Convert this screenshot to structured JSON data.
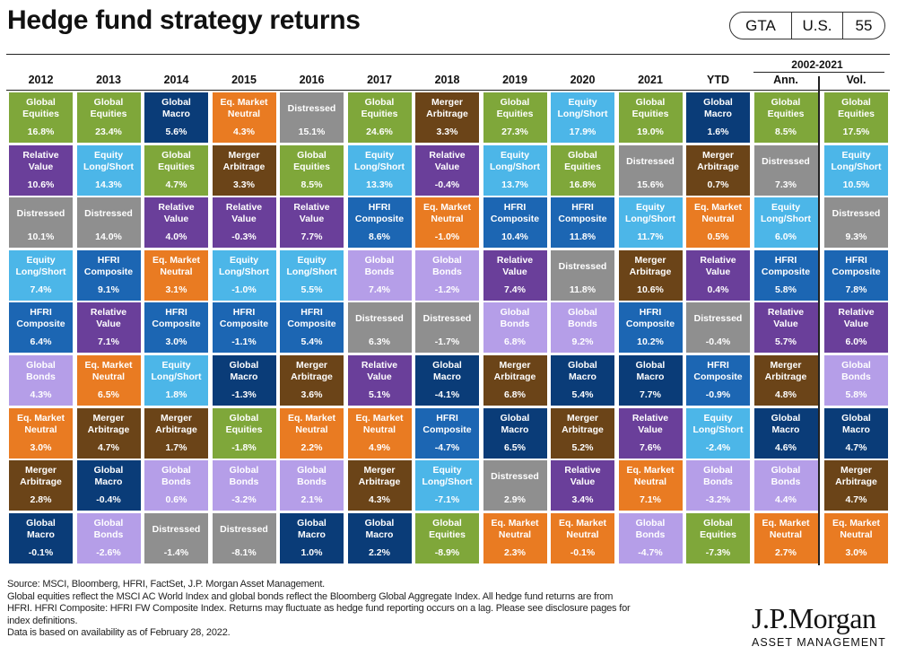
{
  "title": "Hedge fund strategy returns",
  "badge": [
    "GTA",
    "U.S.",
    "55"
  ],
  "chart_data": {
    "type": "table",
    "title": "Hedge fund strategy returns",
    "columns": [
      "2012",
      "2013",
      "2014",
      "2015",
      "2016",
      "2017",
      "2018",
      "2019",
      "2020",
      "2021",
      "YTD",
      "Ann.",
      "Vol."
    ],
    "range_label": "2002-2021",
    "colors": {
      "Global Equities": "#7fa73a",
      "Relative Value": "#6a3f9a",
      "Distressed": "#8f8f8f",
      "Equity Long/Short": "#4cb6e8",
      "HFRI Composite": "#1c66b3",
      "Global Bonds": "#b59ee8",
      "Eq. Market Neutral": "#e97b22",
      "Merger Arbitrage": "#6b4418",
      "Global Macro": "#0a3c78"
    },
    "ranks": [
      [
        {
          "name": "Global Equities",
          "value": "16.8%"
        },
        {
          "name": "Relative Value",
          "value": "10.6%"
        },
        {
          "name": "Distressed",
          "value": "10.1%"
        },
        {
          "name": "Equity Long/Short",
          "value": "7.4%"
        },
        {
          "name": "HFRI Composite",
          "value": "6.4%"
        },
        {
          "name": "Global Bonds",
          "value": "4.3%"
        },
        {
          "name": "Eq. Market Neutral",
          "value": "3.0%"
        },
        {
          "name": "Merger Arbitrage",
          "value": "2.8%"
        },
        {
          "name": "Global Macro",
          "value": "-0.1%"
        }
      ],
      [
        {
          "name": "Global Equities",
          "value": "23.4%"
        },
        {
          "name": "Equity Long/Short",
          "value": "14.3%"
        },
        {
          "name": "Distressed",
          "value": "14.0%"
        },
        {
          "name": "HFRI Composite",
          "value": "9.1%"
        },
        {
          "name": "Relative Value",
          "value": "7.1%"
        },
        {
          "name": "Eq. Market Neutral",
          "value": "6.5%"
        },
        {
          "name": "Merger Arbitrage",
          "value": "4.7%"
        },
        {
          "name": "Global Macro",
          "value": "-0.4%"
        },
        {
          "name": "Global Bonds",
          "value": "-2.6%"
        }
      ],
      [
        {
          "name": "Global Macro",
          "value": "5.6%"
        },
        {
          "name": "Global Equities",
          "value": "4.7%"
        },
        {
          "name": "Relative Value",
          "value": "4.0%"
        },
        {
          "name": "Eq. Market Neutral",
          "value": "3.1%"
        },
        {
          "name": "HFRI Composite",
          "value": "3.0%"
        },
        {
          "name": "Equity Long/Short",
          "value": "1.8%"
        },
        {
          "name": "Merger Arbitrage",
          "value": "1.7%"
        },
        {
          "name": "Global Bonds",
          "value": "0.6%"
        },
        {
          "name": "Distressed",
          "value": "-1.4%"
        }
      ],
      [
        {
          "name": "Eq. Market Neutral",
          "value": "4.3%"
        },
        {
          "name": "Merger Arbitrage",
          "value": "3.3%"
        },
        {
          "name": "Relative Value",
          "value": "-0.3%"
        },
        {
          "name": "Equity Long/Short",
          "value": "-1.0%"
        },
        {
          "name": "HFRI Composite",
          "value": "-1.1%"
        },
        {
          "name": "Global Macro",
          "value": "-1.3%"
        },
        {
          "name": "Global Equities",
          "value": "-1.8%"
        },
        {
          "name": "Global Bonds",
          "value": "-3.2%"
        },
        {
          "name": "Distressed",
          "value": "-8.1%"
        }
      ],
      [
        {
          "name": "Distressed",
          "value": "15.1%"
        },
        {
          "name": "Global Equities",
          "value": "8.5%"
        },
        {
          "name": "Relative Value",
          "value": "7.7%"
        },
        {
          "name": "Equity Long/Short",
          "value": "5.5%"
        },
        {
          "name": "HFRI Composite",
          "value": "5.4%"
        },
        {
          "name": "Merger Arbitrage",
          "value": "3.6%"
        },
        {
          "name": "Eq. Market Neutral",
          "value": "2.2%"
        },
        {
          "name": "Global Bonds",
          "value": "2.1%"
        },
        {
          "name": "Global Macro",
          "value": "1.0%"
        }
      ],
      [
        {
          "name": "Global Equities",
          "value": "24.6%"
        },
        {
          "name": "Equity Long/Short",
          "value": "13.3%"
        },
        {
          "name": "HFRI Composite",
          "value": "8.6%"
        },
        {
          "name": "Global Bonds",
          "value": "7.4%"
        },
        {
          "name": "Distressed",
          "value": "6.3%"
        },
        {
          "name": "Relative Value",
          "value": "5.1%"
        },
        {
          "name": "Eq. Market Neutral",
          "value": "4.9%"
        },
        {
          "name": "Merger Arbitrage",
          "value": "4.3%"
        },
        {
          "name": "Global Macro",
          "value": "2.2%"
        }
      ],
      [
        {
          "name": "Merger Arbitrage",
          "value": "3.3%"
        },
        {
          "name": "Relative Value",
          "value": "-0.4%"
        },
        {
          "name": "Eq. Market Neutral",
          "value": "-1.0%"
        },
        {
          "name": "Global Bonds",
          "value": "-1.2%"
        },
        {
          "name": "Distressed",
          "value": "-1.7%"
        },
        {
          "name": "Global Macro",
          "value": "-4.1%"
        },
        {
          "name": "HFRI Composite",
          "value": "-4.7%"
        },
        {
          "name": "Equity Long/Short",
          "value": "-7.1%"
        },
        {
          "name": "Global Equities",
          "value": "-8.9%"
        }
      ],
      [
        {
          "name": "Global Equities",
          "value": "27.3%"
        },
        {
          "name": "Equity Long/Short",
          "value": "13.7%"
        },
        {
          "name": "HFRI Composite",
          "value": "10.4%"
        },
        {
          "name": "Relative Value",
          "value": "7.4%"
        },
        {
          "name": "Global Bonds",
          "value": "6.8%"
        },
        {
          "name": "Merger Arbitrage",
          "value": "6.8%"
        },
        {
          "name": "Global Macro",
          "value": "6.5%"
        },
        {
          "name": "Distressed",
          "value": "2.9%"
        },
        {
          "name": "Eq. Market Neutral",
          "value": "2.3%"
        }
      ],
      [
        {
          "name": "Equity Long/Short",
          "value": "17.9%"
        },
        {
          "name": "Global Equities",
          "value": "16.8%"
        },
        {
          "name": "HFRI Composite",
          "value": "11.8%"
        },
        {
          "name": "Distressed",
          "value": "11.8%"
        },
        {
          "name": "Global Bonds",
          "value": "9.2%"
        },
        {
          "name": "Global Macro",
          "value": "5.4%"
        },
        {
          "name": "Merger Arbitrage",
          "value": "5.2%"
        },
        {
          "name": "Relative Value",
          "value": "3.4%"
        },
        {
          "name": "Eq. Market Neutral",
          "value": "-0.1%"
        }
      ],
      [
        {
          "name": "Global Equities",
          "value": "19.0%"
        },
        {
          "name": "Distressed",
          "value": "15.6%"
        },
        {
          "name": "Equity Long/Short",
          "value": "11.7%"
        },
        {
          "name": "Merger Arbitrage",
          "value": "10.6%"
        },
        {
          "name": "HFRI Composite",
          "value": "10.2%"
        },
        {
          "name": "Global Macro",
          "value": "7.7%"
        },
        {
          "name": "Relative Value",
          "value": "7.6%"
        },
        {
          "name": "Eq. Market Neutral",
          "value": "7.1%"
        },
        {
          "name": "Global Bonds",
          "value": "-4.7%"
        }
      ],
      [
        {
          "name": "Global Macro",
          "value": "1.6%"
        },
        {
          "name": "Merger Arbitrage",
          "value": "0.7%"
        },
        {
          "name": "Eq. Market Neutral",
          "value": "0.5%"
        },
        {
          "name": "Relative Value",
          "value": "0.4%"
        },
        {
          "name": "Distressed",
          "value": "-0.4%"
        },
        {
          "name": "HFRI Composite",
          "value": "-0.9%"
        },
        {
          "name": "Equity Long/Short",
          "value": "-2.4%"
        },
        {
          "name": "Global Bonds",
          "value": "-3.2%"
        },
        {
          "name": "Global Equities",
          "value": "-7.3%"
        }
      ],
      [
        {
          "name": "Global Equities",
          "value": "8.5%"
        },
        {
          "name": "Distressed",
          "value": "7.3%"
        },
        {
          "name": "Equity Long/Short",
          "value": "6.0%"
        },
        {
          "name": "HFRI Composite",
          "value": "5.8%"
        },
        {
          "name": "Relative Value",
          "value": "5.7%"
        },
        {
          "name": "Merger Arbitrage",
          "value": "4.8%"
        },
        {
          "name": "Global Macro",
          "value": "4.6%"
        },
        {
          "name": "Global Bonds",
          "value": "4.4%"
        },
        {
          "name": "Eq. Market Neutral",
          "value": "2.7%"
        }
      ],
      [
        {
          "name": "Global Equities",
          "value": "17.5%"
        },
        {
          "name": "Equity Long/Short",
          "value": "10.5%"
        },
        {
          "name": "Distressed",
          "value": "9.3%"
        },
        {
          "name": "HFRI Composite",
          "value": "7.8%"
        },
        {
          "name": "Relative Value",
          "value": "6.0%"
        },
        {
          "name": "Global Bonds",
          "value": "5.8%"
        },
        {
          "name": "Global Macro",
          "value": "4.7%"
        },
        {
          "name": "Merger Arbitrage",
          "value": "4.7%"
        },
        {
          "name": "Eq. Market Neutral",
          "value": "3.0%"
        }
      ]
    ]
  },
  "footer": [
    "Source: MSCI, Bloomberg, HFRI, FactSet, J.P. Morgan Asset Management.",
    "Global equities reflect the MSCI AC World Index and global bonds reflect the Bloomberg Global Aggregate Index. All hedge fund returns are from",
    "HFRI. HFRI Composite: HFRI FW Composite Index. Returns may fluctuate as hedge fund reporting occurs on a lag. Please see disclosure pages for",
    "index definitions.",
    "Data is based on availability as of February 28, 2022."
  ],
  "logo": {
    "main": "J.P.Morgan",
    "sub": "ASSET MANAGEMENT"
  }
}
